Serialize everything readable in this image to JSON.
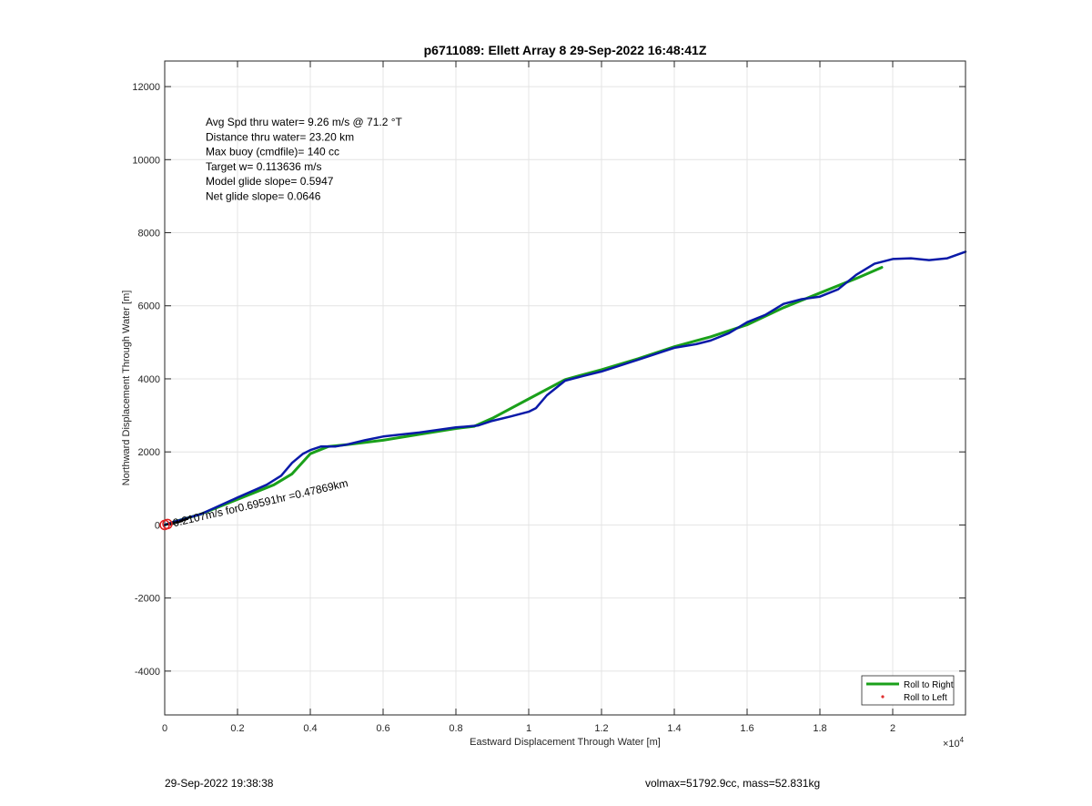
{
  "chart_data": {
    "type": "line",
    "title": "p6711089: Ellett Array 8 29-Sep-2022 16:48:41Z",
    "xlabel": "Eastward Displacement Through Water [m]",
    "ylabel": "Northward Displacement Through Water [m]",
    "x_exponent": "×10",
    "x_exponent_power": "4",
    "xlim": [
      0,
      22000
    ],
    "ylim": [
      -5200,
      12700
    ],
    "xticks": [
      0,
      2000,
      4000,
      6000,
      8000,
      10000,
      12000,
      14000,
      16000,
      18000,
      20000
    ],
    "xtick_labels": [
      "0",
      "0.2",
      "0.4",
      "0.6",
      "0.8",
      "1",
      "1.2",
      "1.4",
      "1.6",
      "1.8",
      "2"
    ],
    "yticks": [
      -4000,
      -2000,
      0,
      2000,
      4000,
      6000,
      8000,
      10000,
      12000
    ],
    "ytick_labels": [
      "-4000",
      "-2000",
      "0",
      "2000",
      "4000",
      "6000",
      "8000",
      "10000",
      "12000"
    ],
    "grid": true,
    "legend_position": "bottom-right",
    "legend": [
      {
        "label": "Roll to Right",
        "color": "#1aa01a",
        "style": "line"
      },
      {
        "label": "Roll to Left",
        "color": "#e03030",
        "style": "dot"
      }
    ],
    "annotations": [
      "Avg Spd thru water=  9.26 m/s @  71.2 °T",
      "Distance thru water= 23.20 km",
      "Max buoy (cmdfile)= 140 cc",
      "Target w= 0.113636 m/s",
      "Model glide slope= 0.5947",
      "Net glide slope= 0.0646"
    ],
    "current_label": "0.2107m/s for0.69591hr =0.47869km",
    "series": [
      {
        "name": "Roll to Right",
        "color": "#1aa01a",
        "x": [
          0,
          300,
          1000,
          2000,
          3000,
          3500,
          4000,
          4500,
          5000,
          6000,
          7000,
          8000,
          8500,
          9000,
          10000,
          11000,
          12000,
          13000,
          14000,
          15000,
          16000,
          17000,
          18000,
          19000,
          19700
        ],
        "y": [
          0,
          100,
          300,
          700,
          1100,
          1400,
          1950,
          2150,
          2200,
          2320,
          2480,
          2640,
          2700,
          2920,
          3450,
          3980,
          4250,
          4550,
          4880,
          5150,
          5480,
          5950,
          6350,
          6750,
          7050
        ]
      },
      {
        "name": "",
        "color": "#0a1aa8",
        "x": [
          0,
          300,
          1000,
          2000,
          2800,
          3200,
          3500,
          3800,
          4000,
          4300,
          4700,
          5000,
          5500,
          6000,
          7000,
          8000,
          8600,
          9000,
          9500,
          10000,
          10200,
          10500,
          11000,
          11500,
          12000,
          13000,
          14000,
          14600,
          15000,
          15500,
          16000,
          16500,
          17000,
          17500,
          18000,
          18500,
          19000,
          19500,
          20000,
          20500,
          21000,
          21500,
          22000
        ],
        "y": [
          0,
          100,
          300,
          750,
          1100,
          1350,
          1700,
          1950,
          2050,
          2150,
          2150,
          2200,
          2320,
          2420,
          2530,
          2670,
          2720,
          2850,
          2970,
          3100,
          3200,
          3550,
          3950,
          4080,
          4200,
          4520,
          4850,
          4950,
          5050,
          5250,
          5550,
          5750,
          6050,
          6180,
          6250,
          6450,
          6850,
          7150,
          7280,
          7300,
          7250,
          7300,
          7480
        ]
      }
    ]
  },
  "footer": {
    "timestamp": "29-Sep-2022 19:38:38",
    "stats": "volmax=51792.9cc, mass=52.831kg"
  }
}
